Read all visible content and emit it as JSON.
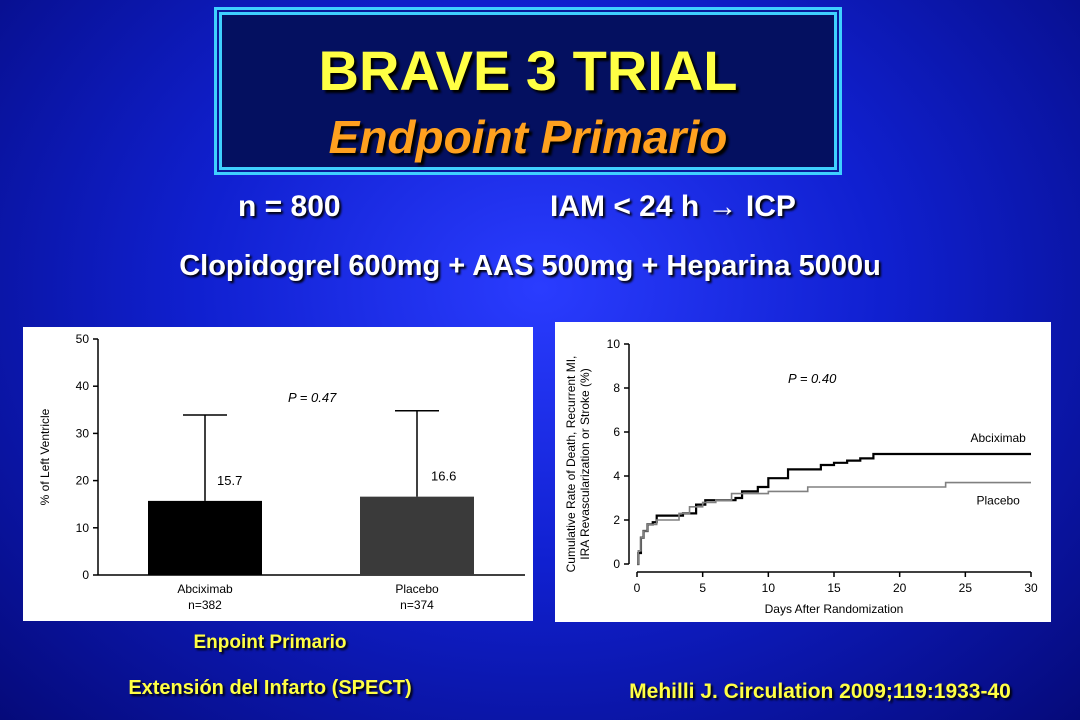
{
  "slide": {
    "title": "BRAVE 3 TRIAL",
    "subtitle": "Endpoint Primario",
    "n_text": "n = 800",
    "iam_text": "IAM < 24 h → ICP",
    "regimen": "Clopidogrel 600mg + AAS 500mg + Heparina 5000u",
    "caption_line1": "Enpoint Primario",
    "caption_line2": "Extensión del Infarto (SPECT)",
    "citation": "Mehilli J. Circulation 2009;119:1933-40",
    "colors": {
      "title": "#ffff44",
      "subtitle": "#ffa11f",
      "background": "#1020d0"
    }
  },
  "chart_data": [
    {
      "type": "bar",
      "ylabel": "% of Left Ventricle",
      "ylim": [
        0,
        50
      ],
      "yticks": [
        0,
        10,
        20,
        30,
        40,
        50
      ],
      "categories": [
        "Abciximab",
        "Placebo"
      ],
      "category_sublabels": [
        "n=382",
        "n=374"
      ],
      "values": [
        15.7,
        16.6
      ],
      "value_labels": [
        "15.7",
        "16.6"
      ],
      "error_upper": [
        33.9,
        34.8
      ],
      "bar_colors": [
        "#000000",
        "#3a3a3a"
      ],
      "annotation": "P = 0.47"
    },
    {
      "type": "line",
      "xlabel": "Days After Randomization",
      "ylabel_line1": "Cumulative Rate of Death, Recurrent MI,",
      "ylabel_line2": "IRA Revascularization or Stroke (%)",
      "xlim": [
        0,
        30
      ],
      "ylim": [
        0,
        10
      ],
      "xticks": [
        0,
        5,
        10,
        15,
        20,
        25,
        30
      ],
      "yticks": [
        0,
        2,
        4,
        6,
        8,
        10
      ],
      "annotation": "P = 0.40",
      "series": [
        {
          "name": "Abciximab",
          "color": "#000000",
          "step_x": [
            0,
            0.1,
            0.3,
            0.5,
            0.8,
            1.2,
            1.5,
            2.2,
            2.8,
            3.5,
            4.5,
            5.2,
            6,
            7.5,
            8,
            9.2,
            10,
            11.5,
            13,
            14,
            15,
            16,
            17,
            18,
            30
          ],
          "step_y": [
            0,
            0.5,
            1.2,
            1.5,
            1.8,
            1.9,
            2.2,
            2.2,
            2.2,
            2.3,
            2.7,
            2.9,
            2.9,
            3.0,
            3.3,
            3.5,
            3.9,
            4.3,
            4.3,
            4.5,
            4.6,
            4.7,
            4.8,
            5.0,
            5.0
          ]
        },
        {
          "name": "Placebo",
          "color": "#808080",
          "step_x": [
            0,
            0.1,
            0.3,
            0.5,
            0.8,
            1.5,
            2.5,
            3.2,
            4,
            5,
            6,
            7.2,
            8,
            10,
            11,
            13,
            14,
            16,
            23.5,
            30
          ],
          "step_y": [
            0,
            0.6,
            1.2,
            1.5,
            1.8,
            2.0,
            2.0,
            2.3,
            2.6,
            2.8,
            2.9,
            3.2,
            3.2,
            3.3,
            3.3,
            3.5,
            3.5,
            3.5,
            3.7,
            3.7
          ]
        }
      ]
    }
  ]
}
